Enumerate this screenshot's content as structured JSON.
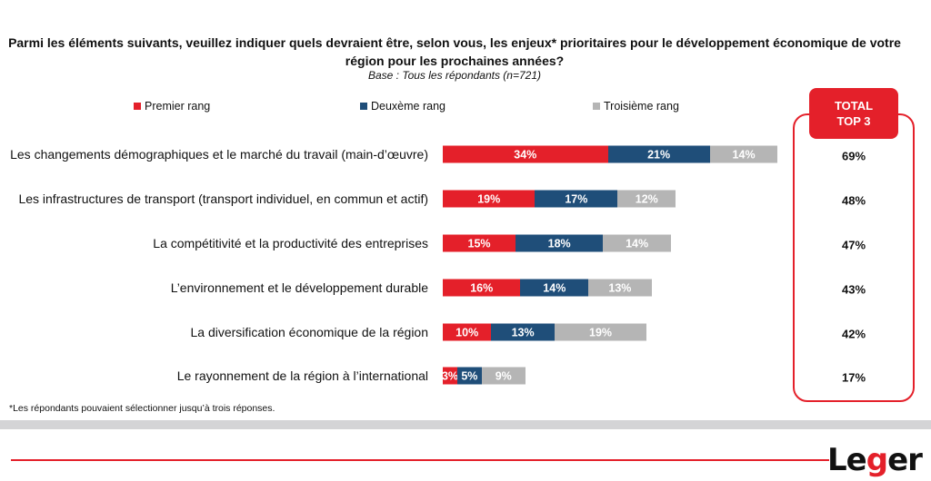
{
  "chart_data": {
    "type": "bar",
    "orientation": "horizontal",
    "stacked": true,
    "title": "Parmi les éléments suivants, veuillez indiquer quels devraient être, selon vous, les enjeux* prioritaires pour le développement économique de votre région pour les prochaines années?",
    "subtitle": "Base : Tous les répondants (n=721)",
    "legend_position": "top",
    "categories": [
      "Les changements démographiques et le marché du travail (main-d’œuvre)",
      "Les infrastructures de transport (transport individuel, en commun et actif)",
      "La compétitivité et la productivité des entreprises",
      "L’environnement et le développement durable",
      "La diversification économique de la région",
      "Le rayonnement de la région à l’international"
    ],
    "series": [
      {
        "name": "Premier rang",
        "color": "#e4202a",
        "values": [
          34,
          19,
          15,
          16,
          10,
          3
        ]
      },
      {
        "name": "Deuxème rang",
        "color": "#1f4e79",
        "values": [
          21,
          17,
          18,
          14,
          13,
          5
        ]
      },
      {
        "name": "Troisième rang",
        "color": "#b5b5b5",
        "values": [
          14,
          12,
          14,
          13,
          19,
          9
        ]
      }
    ],
    "total_header": [
      "TOTAL",
      "TOP 3"
    ],
    "totals": [
      69,
      48,
      47,
      43,
      42,
      17
    ],
    "unit": "%"
  },
  "footnote": "*Les répondants pouvaient sélectionner jusqu’à trois réponses.",
  "logo": "Leger"
}
